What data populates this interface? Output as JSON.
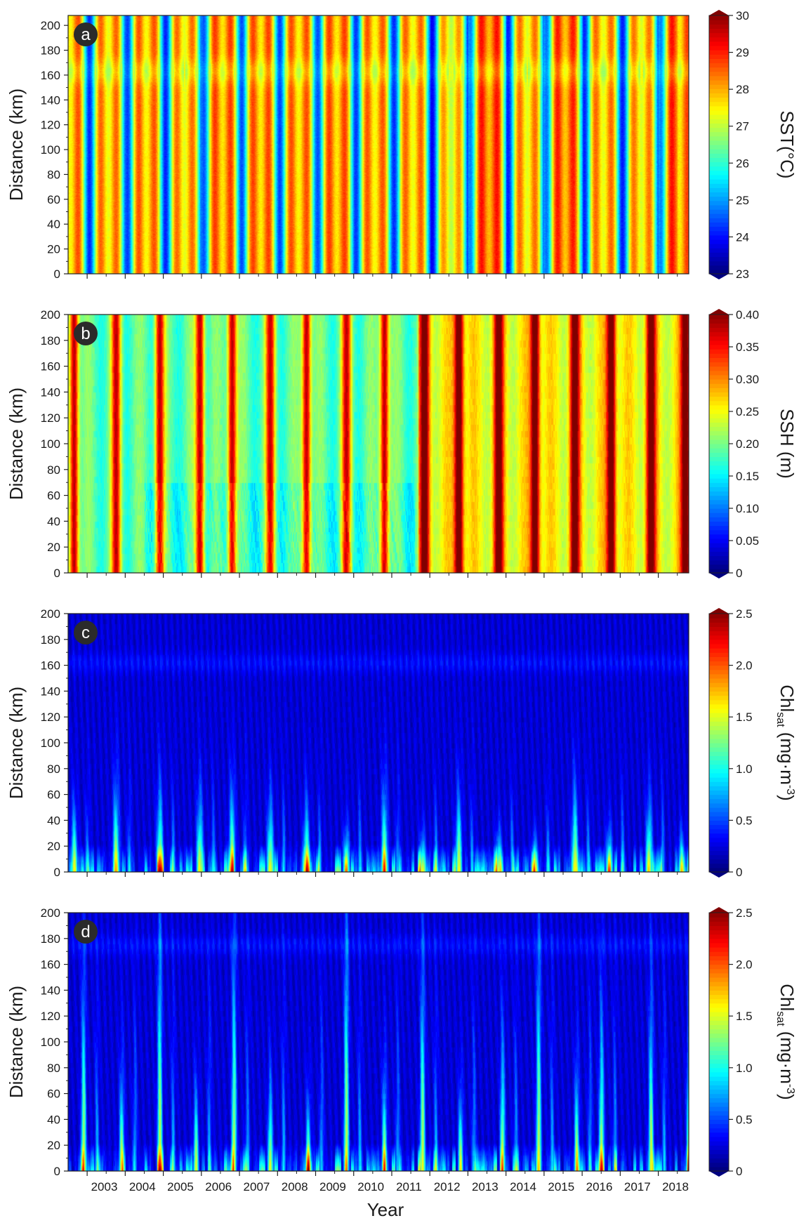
{
  "chart_data": [
    {
      "type": "heatmap",
      "panel_label": "a",
      "ylabel": "Distance (km)",
      "yticks": [
        0,
        20,
        40,
        60,
        80,
        100,
        120,
        140,
        160,
        180,
        200
      ],
      "ylim": [
        0,
        208
      ],
      "xlim": [
        2002.5,
        2018.8
      ],
      "colorbar": {
        "label": "SST(°C)",
        "range": [
          23,
          30
        ],
        "ticks": [
          "23",
          "24",
          "25",
          "26",
          "27",
          "28",
          "29",
          "30"
        ],
        "colormap": "jet"
      },
      "pattern": {
        "kind": "seasonal",
        "peaks": [
          0.5,
          0.5,
          0.5,
          0.52,
          0.5,
          0.53,
          0.5,
          0.55,
          0.5,
          0.52,
          0.55,
          0.55,
          0.55,
          0.55,
          0.55,
          0.55
        ],
        "troughs": [
          0.28,
          0.2,
          0.2,
          0.18,
          0.2,
          0.18,
          0.2,
          0.1,
          0.2,
          0.16,
          0.18,
          0.18,
          0.18,
          0.2,
          0.2,
          0.2
        ],
        "base": 0.6,
        "amp": 0.42,
        "band": {
          "center": 163,
          "width": 10,
          "delta": 0.08
        }
      }
    },
    {
      "type": "heatmap",
      "panel_label": "b",
      "ylabel": "Distance (km)",
      "yticks": [
        0,
        20,
        40,
        60,
        80,
        100,
        120,
        140,
        160,
        180,
        200
      ],
      "ylim": [
        0,
        200
      ],
      "xlim": [
        2002.5,
        2018.8
      ],
      "colorbar": {
        "label": "SSH (m)",
        "range": [
          0,
          0.4
        ],
        "ticks": [
          "0",
          "0.05",
          "0.10",
          "0.15",
          "0.20",
          "0.25",
          "0.30",
          "0.35",
          "0.40"
        ],
        "colormap": "jet"
      },
      "pattern": {
        "kind": "seasonal",
        "peaks": [
          2002.65,
          2003.75,
          2004.9,
          2005.95,
          2006.8,
          2007.8,
          2008.75,
          2009.8,
          2010.8,
          2011.85,
          2012.75,
          2013.8,
          2014.75,
          2015.8,
          2016.75,
          2017.8,
          2018.7
        ],
        "base": 0.58,
        "amp": 0.32,
        "trend_years": [
          2011.7,
          2018.8
        ],
        "trend_gain": 0.16
      }
    },
    {
      "type": "heatmap",
      "panel_label": "c",
      "ylabel": "Distance (km)",
      "yticks": [
        0,
        20,
        40,
        60,
        80,
        100,
        120,
        140,
        160,
        180,
        200
      ],
      "ylim": [
        0,
        200
      ],
      "xlim": [
        2002.5,
        2018.8
      ],
      "colorbar": {
        "label": "Chl",
        "label_sub": "sat",
        "label_unit": "(mg·m",
        "label_sup": "-3",
        "label_end": ")",
        "range": [
          0,
          2.5
        ],
        "ticks": [
          "0",
          "0.5",
          "1.0",
          "1.5",
          "2.0",
          "2.5"
        ],
        "colormap": "jet"
      },
      "pattern": {
        "kind": "coastal_bloom",
        "bloom_years": [
          2002.65,
          2003.75,
          2004.9,
          2005.95,
          2006.8,
          2007.8,
          2008.75,
          2009.8,
          2010.8,
          2011.8,
          2012.75,
          2013.8,
          2014.75,
          2015.8,
          2016.7,
          2017.75,
          2018.6
        ],
        "band": {
          "center": 162,
          "width": 8,
          "delta": 0.05
        }
      }
    },
    {
      "type": "heatmap",
      "panel_label": "d",
      "ylabel": "Distance (km)",
      "yticks": [
        0,
        20,
        40,
        60,
        80,
        100,
        120,
        140,
        160,
        180,
        200
      ],
      "ylim": [
        0,
        200
      ],
      "xlim": [
        2002.5,
        2018.8
      ],
      "xlabel": "Year",
      "xticks": [
        "2003",
        "2004",
        "2005",
        "2006",
        "2007",
        "2008",
        "2009",
        "2010",
        "2011",
        "2012",
        "2013",
        "2014",
        "2015",
        "2016",
        "2017",
        "2018"
      ],
      "colorbar": {
        "label": "Chl",
        "label_sub": "sat",
        "label_unit": "(mg·m",
        "label_sup": "-3",
        "label_end": ")",
        "range": [
          0,
          2.5
        ],
        "ticks": [
          "0",
          "0.5",
          "1.0",
          "1.5",
          "2.0",
          "2.5"
        ],
        "colormap": "jet"
      },
      "pattern": {
        "kind": "coastal_bloom_tall",
        "bloom_years": [
          2002.9,
          2003.9,
          2004.9,
          2005.85,
          2006.85,
          2007.8,
          2008.8,
          2009.8,
          2010.8,
          2011.8,
          2012.8,
          2013.9,
          2014.85,
          2015.85,
          2016.5,
          2017.8,
          2018.8
        ],
        "band": {
          "center": 175,
          "width": 8,
          "delta": 0.05
        }
      }
    }
  ]
}
